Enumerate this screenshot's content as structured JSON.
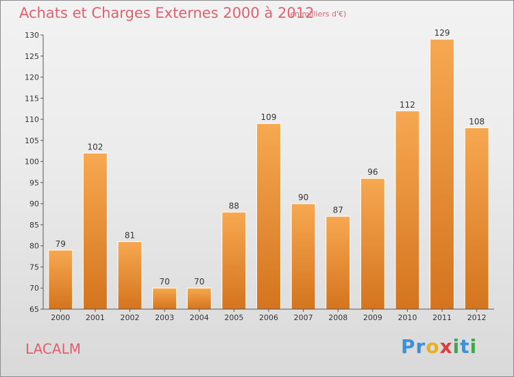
{
  "title": "Achats et Charges Externes 2000 à 2012",
  "subtitle": "(en milliers d'€)",
  "location": "LACALM",
  "logo": {
    "letters": [
      "P",
      "r",
      "o",
      "x",
      "i",
      "t",
      "i"
    ],
    "colors": [
      "#3d8fd6",
      "#3d8fd6",
      "#e8b020",
      "#e23b3b",
      "#3aaa4a",
      "#3d8fd6",
      "#3aaa4a"
    ]
  },
  "chart_data": {
    "type": "bar",
    "categories": [
      "2000",
      "2001",
      "2002",
      "2003",
      "2004",
      "2005",
      "2006",
      "2007",
      "2008",
      "2009",
      "2010",
      "2011",
      "2012"
    ],
    "values": [
      79,
      102,
      81,
      70,
      70,
      88,
      109,
      90,
      87,
      96,
      112,
      129,
      108
    ],
    "ylim": [
      65,
      130
    ],
    "yticks": [
      65,
      70,
      75,
      80,
      85,
      90,
      95,
      100,
      105,
      110,
      115,
      120,
      125,
      130
    ],
    "grid": false,
    "bar_color": "#f29a3c"
  }
}
